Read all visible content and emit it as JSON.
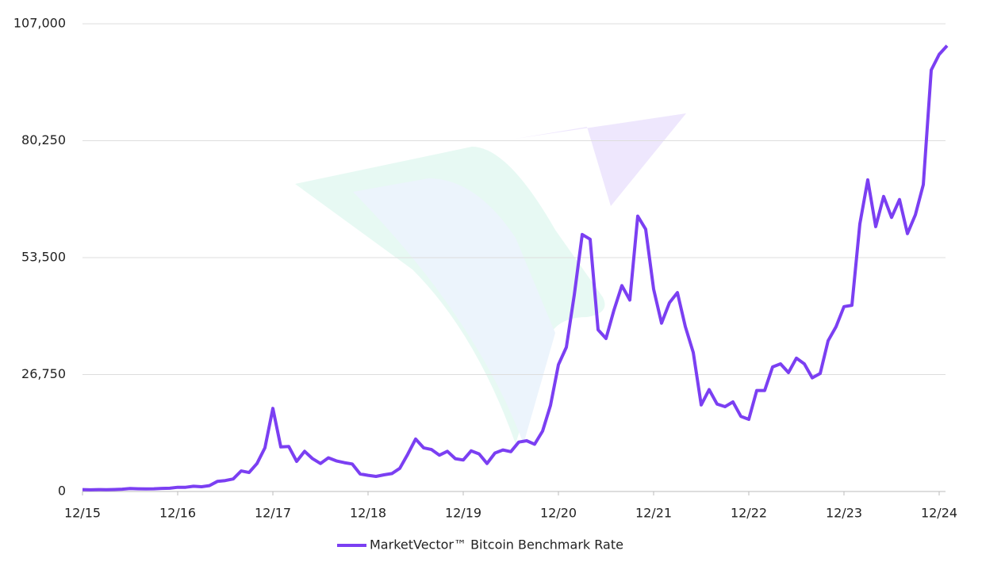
{
  "chart_data": {
    "type": "line",
    "x": [
      "12/15",
      "01/16",
      "02/16",
      "03/16",
      "04/16",
      "05/16",
      "06/16",
      "07/16",
      "08/16",
      "09/16",
      "10/16",
      "11/16",
      "12/16",
      "01/17",
      "02/17",
      "03/17",
      "04/17",
      "05/17",
      "06/17",
      "07/17",
      "08/17",
      "09/17",
      "10/17",
      "11/17",
      "12/17",
      "01/18",
      "02/18",
      "03/18",
      "04/18",
      "05/18",
      "06/18",
      "07/18",
      "08/18",
      "09/18",
      "10/18",
      "11/18",
      "12/18",
      "01/19",
      "02/19",
      "03/19",
      "04/19",
      "05/19",
      "06/19",
      "07/19",
      "08/19",
      "09/19",
      "10/19",
      "11/19",
      "12/19",
      "01/20",
      "02/20",
      "03/20",
      "04/20",
      "05/20",
      "06/20",
      "07/20",
      "08/20",
      "09/20",
      "10/20",
      "11/20",
      "12/20",
      "01/21",
      "02/21",
      "03/21",
      "04/21",
      "05/21",
      "06/21",
      "07/21",
      "08/21",
      "09/21",
      "10/21",
      "11/21",
      "12/21",
      "01/22",
      "02/22",
      "03/22",
      "04/22",
      "05/22",
      "06/22",
      "07/22",
      "08/22",
      "09/22",
      "10/22",
      "11/22",
      "12/22",
      "01/23",
      "02/23",
      "03/23",
      "04/23",
      "05/23",
      "06/23",
      "07/23",
      "08/23",
      "09/23",
      "10/23",
      "11/23",
      "12/23",
      "01/24",
      "02/24",
      "03/24",
      "04/24",
      "05/24",
      "06/24",
      "07/24",
      "08/24",
      "09/24",
      "10/24",
      "11/24",
      "12/24",
      "01/25"
    ],
    "series": [
      {
        "name": "MarketVector™ Bitcoin Benchmark Rate",
        "color": "#7b3ff2",
        "values": [
          430,
          380,
          430,
          415,
          450,
          530,
          670,
          620,
          575,
          610,
          700,
          740,
          960,
          970,
          1190,
          1080,
          1350,
          2300,
          2500,
          2870,
          4700,
          4340,
          6400,
          10000,
          19000,
          10200,
          10300,
          6900,
          9200,
          7500,
          6400,
          7700,
          7000,
          6600,
          6300,
          4000,
          3700,
          3450,
          3800,
          4100,
          5300,
          8500,
          12000,
          10000,
          9600,
          8300,
          9200,
          7500,
          7200,
          9300,
          8600,
          6400,
          8800,
          9500,
          9100,
          11300,
          11600,
          10800,
          13800,
          19700,
          29000,
          33000,
          45000,
          58800,
          57700,
          37000,
          35000,
          41500,
          47100,
          43800,
          63000,
          60000,
          46300,
          38500,
          43200,
          45500,
          37700,
          31800,
          19800,
          23300,
          20000,
          19400,
          20500,
          17200,
          16500,
          23100,
          23100,
          28500,
          29200,
          27200,
          30500,
          29200,
          26000,
          27000,
          34500,
          37700,
          42300,
          42600,
          61200,
          71300,
          60600,
          67500,
          62700,
          66800,
          59000,
          63300,
          70200,
          96400,
          100000,
          102000
        ]
      }
    ],
    "xlim": [
      "12/15",
      "01/25"
    ],
    "xticks": [
      "12/15",
      "12/16",
      "12/17",
      "12/18",
      "12/19",
      "12/20",
      "12/21",
      "12/22",
      "12/23",
      "12/24"
    ],
    "ylim": [
      0,
      107000
    ],
    "yticks": [
      0,
      {
        "value": 26750,
        "label": "26,750"
      },
      {
        "value": 53500,
        "label": "53,500"
      },
      {
        "value": 80250,
        "label": "80,250"
      },
      {
        "value": 107000,
        "label": "107,000"
      }
    ],
    "grid": true
  }
}
